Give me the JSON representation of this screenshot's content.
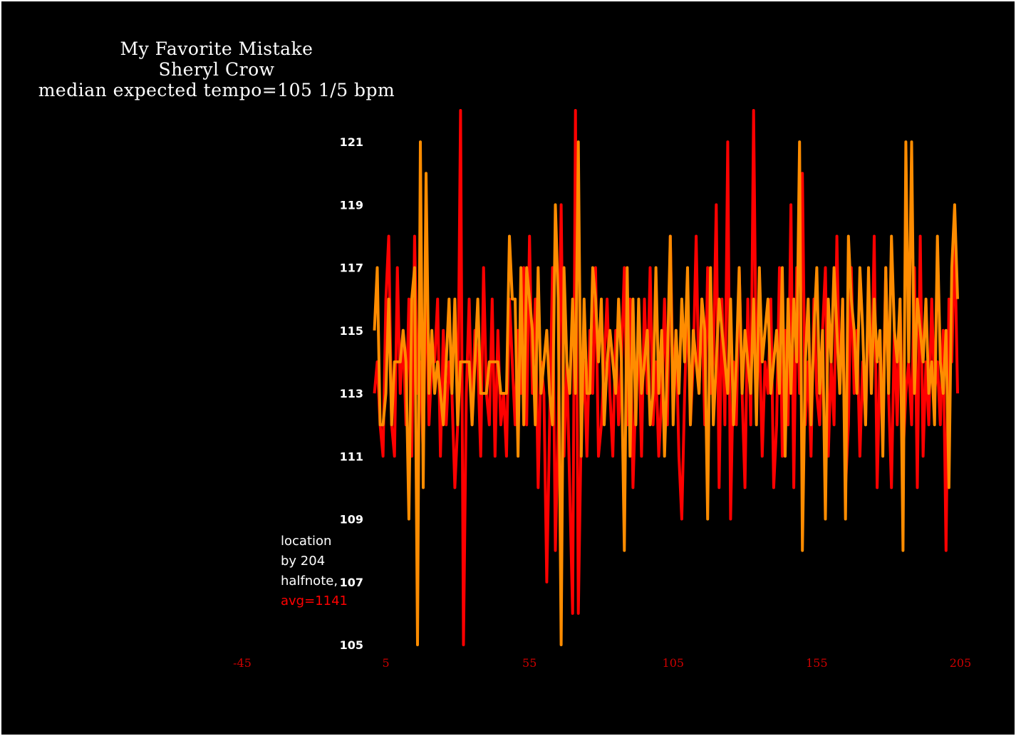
{
  "chart_data": {
    "type": "line",
    "title_lines": [
      "My Favorite Mistake",
      "Sheryl Crow",
      "median expected tempo=105 1/5 bpm"
    ],
    "annotation_lines": [
      "location",
      "by 204",
      "halfnote,"
    ],
    "annotation_highlight": "avg=1141",
    "x_ticks": [
      "-45",
      "5",
      "55",
      "105",
      "155",
      "205"
    ],
    "y_ticks": [
      "105",
      "107",
      "109",
      "111",
      "113",
      "115",
      "117",
      "119",
      "121"
    ],
    "xlim": [
      -45,
      205
    ],
    "ylim": [
      105,
      122
    ],
    "grid": false,
    "legend": "none",
    "colors": {
      "series_a": "#ff0000",
      "series_b": "#ff8c00",
      "x_tick": "#cc0000",
      "y_tick": "#ffffff",
      "annotation_highlight": "#ff0000"
    },
    "series": [
      {
        "color": "#ff0000",
        "x": [
          1,
          2,
          3,
          4,
          5,
          6,
          7,
          8,
          9,
          10,
          11,
          12,
          13,
          14,
          15,
          16,
          17,
          18,
          19,
          20,
          21,
          22,
          23,
          24,
          25,
          26,
          27,
          28,
          29,
          30,
          31,
          32,
          33,
          34,
          35,
          36,
          37,
          38,
          39,
          40,
          41,
          42,
          43,
          44,
          45,
          46,
          47,
          48,
          49,
          50,
          51,
          52,
          53,
          54,
          55,
          56,
          57,
          58,
          59,
          60,
          61,
          62,
          63,
          64,
          65,
          66,
          67,
          68,
          69,
          70,
          71,
          72,
          73,
          74,
          75,
          76,
          77,
          78,
          79,
          80,
          81,
          82,
          83,
          84,
          85,
          86,
          87,
          88,
          89,
          90,
          91,
          92,
          93,
          94,
          95,
          96,
          97,
          98,
          99,
          100,
          101,
          102,
          103,
          104,
          105,
          106,
          107,
          108,
          109,
          110,
          111,
          112,
          113,
          114,
          115,
          116,
          117,
          118,
          119,
          120,
          121,
          122,
          123,
          124,
          125,
          126,
          127,
          128,
          129,
          130,
          131,
          132,
          133,
          134,
          135,
          136,
          137,
          138,
          139,
          140,
          141,
          142,
          143,
          144,
          145,
          146,
          147,
          148,
          149,
          150,
          151,
          152,
          153,
          154,
          155,
          156,
          157,
          158,
          159,
          160,
          161,
          162,
          163,
          164,
          165,
          166,
          167,
          168,
          169,
          170,
          171,
          172,
          173,
          174,
          175,
          176,
          177,
          178,
          179,
          180,
          181,
          182,
          183,
          184,
          185,
          186,
          187,
          188,
          189,
          190,
          191,
          192,
          193,
          194,
          195,
          196,
          197,
          198,
          199,
          200,
          201,
          202,
          203,
          204
        ],
        "y": [
          113,
          114,
          112,
          111,
          116,
          118,
          112,
          111,
          117,
          113,
          115,
          112,
          116,
          111,
          118,
          113,
          114,
          111,
          117,
          112,
          114,
          114,
          116,
          111,
          115,
          112,
          114,
          113,
          110,
          112,
          122,
          105,
          113,
          116,
          112,
          115,
          114,
          111,
          117,
          113,
          112,
          116,
          111,
          115,
          112,
          113,
          111,
          116,
          114,
          112,
          115,
          113,
          117,
          112,
          118,
          113,
          116,
          110,
          114,
          113,
          107,
          112,
          117,
          108,
          112,
          119,
          111,
          114,
          110,
          106,
          122,
          106,
          112,
          114,
          111,
          115,
          113,
          117,
          111,
          112,
          114,
          116,
          113,
          111,
          115,
          112,
          114,
          117,
          112,
          116,
          110,
          113,
          115,
          111,
          116,
          113,
          117,
          112,
          114,
          111,
          113,
          116,
          112,
          118,
          113,
          115,
          111,
          109,
          113,
          116,
          112,
          114,
          118,
          113,
          116,
          112,
          117,
          113,
          114,
          119,
          110,
          116,
          112,
          121,
          109,
          114,
          112,
          117,
          113,
          110,
          116,
          112,
          122,
          113,
          115,
          111,
          114,
          113,
          116,
          110,
          112,
          117,
          111,
          115,
          112,
          119,
          110,
          117,
          113,
          120,
          112,
          114,
          111,
          116,
          113,
          112,
          115,
          117,
          111,
          114,
          112,
          118,
          113,
          116,
          110,
          112,
          117,
          113,
          115,
          111,
          114,
          112,
          116,
          113,
          118,
          110,
          114,
          112,
          117,
          113,
          110,
          115,
          112,
          116,
          111,
          113,
          114,
          112,
          117,
          110,
          118,
          111,
          114,
          112,
          116,
          113,
          114,
          112,
          115,
          108,
          116,
          114,
          118,
          113
        ]
      },
      {
        "color": "#ff8c00",
        "x": [
          1,
          2,
          3,
          4,
          5,
          6,
          7,
          8,
          9,
          10,
          11,
          12,
          13,
          14,
          15,
          16,
          17,
          18,
          19,
          20,
          21,
          22,
          23,
          24,
          25,
          26,
          27,
          28,
          29,
          30,
          31,
          32,
          33,
          34,
          35,
          36,
          37,
          38,
          39,
          40,
          41,
          42,
          43,
          44,
          45,
          46,
          47,
          48,
          49,
          50,
          51,
          52,
          53,
          54,
          55,
          56,
          57,
          58,
          59,
          60,
          61,
          62,
          63,
          64,
          65,
          66,
          67,
          68,
          69,
          70,
          71,
          72,
          73,
          74,
          75,
          76,
          77,
          78,
          79,
          80,
          81,
          82,
          83,
          84,
          85,
          86,
          87,
          88,
          89,
          90,
          91,
          92,
          93,
          94,
          95,
          96,
          97,
          98,
          99,
          100,
          101,
          102,
          103,
          104,
          105,
          106,
          107,
          108,
          109,
          110,
          111,
          112,
          113,
          114,
          115,
          116,
          117,
          118,
          119,
          120,
          121,
          122,
          123,
          124,
          125,
          126,
          127,
          128,
          129,
          130,
          131,
          132,
          133,
          134,
          135,
          136,
          137,
          138,
          139,
          140,
          141,
          142,
          143,
          144,
          145,
          146,
          147,
          148,
          149,
          150,
          151,
          152,
          153,
          154,
          155,
          156,
          157,
          158,
          159,
          160,
          161,
          162,
          163,
          164,
          165,
          166,
          167,
          168,
          169,
          170,
          171,
          172,
          173,
          174,
          175,
          176,
          177,
          178,
          179,
          180,
          181,
          182,
          183,
          184,
          185,
          186,
          187,
          188,
          189,
          190,
          191,
          192,
          193,
          194,
          195,
          196,
          197,
          198,
          199,
          200,
          201,
          202,
          203,
          204
        ],
        "y": [
          115,
          117,
          112,
          112,
          113,
          116,
          112,
          114,
          114,
          114,
          115,
          114,
          109,
          116,
          117,
          105,
          121,
          110,
          120,
          113,
          115,
          113,
          114,
          113,
          112,
          114,
          116,
          113,
          116,
          112,
          114,
          114,
          114,
          114,
          112,
          114,
          116,
          113,
          113,
          113,
          114,
          114,
          114,
          114,
          113,
          113,
          113,
          118,
          116,
          116,
          111,
          117,
          112,
          117,
          116,
          115,
          112,
          117,
          113,
          114,
          115,
          113,
          112,
          119,
          116,
          105,
          117,
          114,
          113,
          116,
          113,
          121,
          111,
          116,
          113,
          113,
          117,
          116,
          114,
          116,
          112,
          114,
          115,
          114,
          113,
          116,
          114,
          108,
          117,
          111,
          116,
          112,
          116,
          113,
          114,
          115,
          112,
          113,
          117,
          113,
          115,
          111,
          114,
          118,
          112,
          115,
          113,
          116,
          114,
          117,
          112,
          115,
          114,
          113,
          116,
          115,
          109,
          117,
          112,
          114,
          116,
          115,
          114,
          113,
          116,
          112,
          114,
          117,
          113,
          115,
          114,
          113,
          116,
          112,
          117,
          114,
          115,
          116,
          113,
          114,
          115,
          113,
          117,
          111,
          116,
          113,
          116,
          114,
          121,
          108,
          114,
          116,
          112,
          115,
          117,
          113,
          115,
          109,
          116,
          114,
          117,
          115,
          113,
          116,
          109,
          118,
          116,
          115,
          113,
          117,
          115,
          112,
          117,
          113,
          116,
          114,
          115,
          111,
          117,
          113,
          118,
          115,
          114,
          116,
          108,
          121,
          114,
          121,
          113,
          116,
          115,
          114,
          116,
          113,
          114,
          112,
          118,
          114,
          113,
          115,
          110,
          117,
          119,
          116
        ]
      }
    ]
  }
}
